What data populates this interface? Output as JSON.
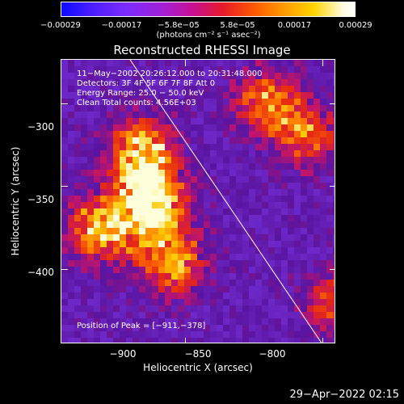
{
  "chart_data": {
    "type": "heatmap",
    "title": "Reconstructed RHESSI Image",
    "xlabel": "Heliocentric X (arcsec)",
    "ylabel": "Heliocentric Y (arcsec)",
    "xlim": [
      -945,
      -845
    ],
    "ylim": [
      -445,
      -274
    ],
    "xticks": [
      -900,
      -850,
      -800
    ],
    "xtick_labels": [
      "−900",
      "−850",
      "−800"
    ],
    "yticks": [
      -300,
      -350,
      -400
    ],
    "ytick_labels": [
      "−300",
      "−350",
      "−400"
    ],
    "colorbar": {
      "ticks": [
        -0.00029,
        -0.00017,
        -5.8e-05,
        5.8e-05,
        0.00017,
        0.00029
      ],
      "tick_labels": [
        "−0.00029",
        "−0.00017",
        "−5.8e−05",
        "5.8e−05",
        "0.00017",
        "0.00029"
      ],
      "range": [
        -0.00029,
        0.00029
      ],
      "label": "(photons cm⁻² s⁻¹ asec⁻²)",
      "colors": [
        "#0b0bff",
        "#7b2cff",
        "#c81090",
        "#e61a2a",
        "#ff9b00",
        "#ffd400",
        "#ffffff"
      ]
    },
    "info_lines": [
      "11−May−2002 20:26:12.000 to 20:31:48.000",
      "Detectors: 3F 4F 5F 6F 7F 8F  Att 0",
      "Energy Range: 25.0 − 50.0 keV",
      "Clean      Total counts: 4.56E+03"
    ],
    "peak_text": "Position of Peak = [−911,−378]",
    "peak": [
      -911,
      -378
    ],
    "limb_line": {
      "x": [
        -920,
        -850
      ],
      "y": [
        -274,
        -445
      ]
    },
    "bright_regions": [
      {
        "x": -912,
        "y": -360,
        "level": 1.0
      },
      {
        "x": -916,
        "y": -330,
        "level": 0.85
      },
      {
        "x": -930,
        "y": -375,
        "level": 0.8
      },
      {
        "x": -905,
        "y": -395,
        "level": 0.7
      },
      {
        "x": -870,
        "y": -300,
        "level": 0.6
      },
      {
        "x": -855,
        "y": -320,
        "level": 0.5
      },
      {
        "x": -815,
        "y": -290,
        "level": 0.75
      },
      {
        "x": -800,
        "y": -320,
        "level": 0.5
      },
      {
        "x": -782,
        "y": -415,
        "level": 0.65
      },
      {
        "x": -800,
        "y": -395,
        "level": 0.45
      },
      {
        "x": -845,
        "y": -420,
        "level": 0.45
      },
      {
        "x": -815,
        "y": -355,
        "level": 0.4
      }
    ]
  },
  "footer_date": "29−Apr−2022 02:15"
}
